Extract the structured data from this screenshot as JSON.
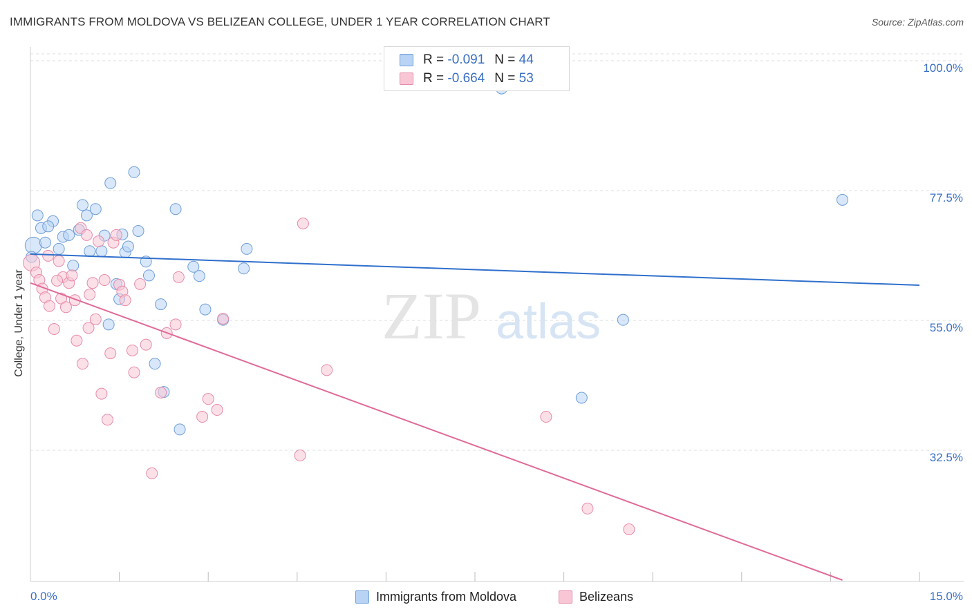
{
  "title": "IMMIGRANTS FROM MOLDOVA VS BELIZEAN COLLEGE, UNDER 1 YEAR CORRELATION CHART",
  "source": "Source: ZipAtlas.com",
  "watermark": {
    "zip": "ZIP",
    "atlas": "atlas"
  },
  "legend": {
    "r_label": "R =",
    "n_label": "N =",
    "series": [
      {
        "name": "Immigrants from Moldova",
        "r": "-0.091",
        "n": "44",
        "fill": "#b8d3f4",
        "stroke": "#6f9ed8"
      },
      {
        "name": "Belizeans",
        "r": "-0.664",
        "n": "53",
        "fill": "#f9c6d6",
        "stroke": "#e78aa8"
      }
    ]
  },
  "colors": {
    "blue_line": "#2f6fcc",
    "pink_line": "#e06a98",
    "axis_text": "#3a6fc4",
    "grid": "#dcdcdc"
  },
  "chart_data": {
    "type": "scatter",
    "title": "IMMIGRANTS FROM MOLDOVA VS BELIZEAN COLLEGE, UNDER 1 YEAR CORRELATION CHART",
    "xlabel": "",
    "ylabel": "College, Under 1 year",
    "xlim": [
      0,
      15
    ],
    "ylim": [
      10,
      102
    ],
    "x_tick_labels": [
      "0.0%",
      "15.0%"
    ],
    "y_ticks": [
      100,
      77.5,
      55,
      32.5
    ],
    "y_tick_labels": [
      "100.0%",
      "77.5%",
      "55.0%",
      "32.5%"
    ],
    "series": [
      {
        "name": "Immigrants from Moldova",
        "color": "#6f9ed8",
        "trend": {
          "x": [
            0,
            15
          ],
          "y": [
            66.5,
            61.1
          ]
        },
        "points": [
          {
            "x": 0.05,
            "y": 68.0
          },
          {
            "x": 0.12,
            "y": 73.2
          },
          {
            "x": 0.18,
            "y": 71.0
          },
          {
            "x": 0.25,
            "y": 68.5
          },
          {
            "x": 0.38,
            "y": 72.2
          },
          {
            "x": 0.3,
            "y": 71.3
          },
          {
            "x": 0.48,
            "y": 67.4
          },
          {
            "x": 0.55,
            "y": 69.5
          },
          {
            "x": 0.65,
            "y": 69.8
          },
          {
            "x": 0.72,
            "y": 64.5
          },
          {
            "x": 0.82,
            "y": 70.7
          },
          {
            "x": 0.88,
            "y": 75.0
          },
          {
            "x": 0.95,
            "y": 73.2
          },
          {
            "x": 1.0,
            "y": 67.0
          },
          {
            "x": 1.1,
            "y": 74.3
          },
          {
            "x": 1.2,
            "y": 67.0
          },
          {
            "x": 1.25,
            "y": 69.7
          },
          {
            "x": 1.32,
            "y": 54.3
          },
          {
            "x": 1.35,
            "y": 78.8
          },
          {
            "x": 1.45,
            "y": 61.3
          },
          {
            "x": 1.5,
            "y": 58.7
          },
          {
            "x": 1.55,
            "y": 69.9
          },
          {
            "x": 1.6,
            "y": 66.8
          },
          {
            "x": 1.65,
            "y": 67.8
          },
          {
            "x": 1.75,
            "y": 80.7
          },
          {
            "x": 1.82,
            "y": 70.5
          },
          {
            "x": 1.95,
            "y": 65.2
          },
          {
            "x": 2.0,
            "y": 62.8
          },
          {
            "x": 2.1,
            "y": 47.5
          },
          {
            "x": 2.2,
            "y": 57.8
          },
          {
            "x": 2.25,
            "y": 42.6
          },
          {
            "x": 2.45,
            "y": 74.3
          },
          {
            "x": 2.52,
            "y": 36.1
          },
          {
            "x": 2.75,
            "y": 64.3
          },
          {
            "x": 2.85,
            "y": 62.7
          },
          {
            "x": 2.95,
            "y": 56.9
          },
          {
            "x": 3.25,
            "y": 55.1
          },
          {
            "x": 3.6,
            "y": 64.0
          },
          {
            "x": 3.65,
            "y": 67.4
          },
          {
            "x": 7.95,
            "y": 95.2
          },
          {
            "x": 9.3,
            "y": 41.6
          },
          {
            "x": 10.0,
            "y": 55.1
          },
          {
            "x": 13.7,
            "y": 75.9
          },
          {
            "x": 0.02,
            "y": 66.0
          }
        ]
      },
      {
        "name": "Belizeans",
        "color": "#e78aa8",
        "trend": {
          "x": [
            0,
            13.7
          ],
          "y": [
            61.5,
            10.0
          ]
        },
        "points": [
          {
            "x": 0.02,
            "y": 65.0
          },
          {
            "x": 0.1,
            "y": 63.3
          },
          {
            "x": 0.15,
            "y": 62.0
          },
          {
            "x": 0.2,
            "y": 60.5
          },
          {
            "x": 0.25,
            "y": 59.0
          },
          {
            "x": 0.32,
            "y": 57.5
          },
          {
            "x": 0.4,
            "y": 53.5
          },
          {
            "x": 0.48,
            "y": 65.3
          },
          {
            "x": 0.52,
            "y": 58.8
          },
          {
            "x": 0.55,
            "y": 62.5
          },
          {
            "x": 0.6,
            "y": 57.3
          },
          {
            "x": 0.65,
            "y": 61.5
          },
          {
            "x": 0.7,
            "y": 62.8
          },
          {
            "x": 0.75,
            "y": 58.5
          },
          {
            "x": 0.78,
            "y": 51.5
          },
          {
            "x": 0.85,
            "y": 71.0
          },
          {
            "x": 0.88,
            "y": 47.5
          },
          {
            "x": 0.95,
            "y": 69.8
          },
          {
            "x": 0.98,
            "y": 53.7
          },
          {
            "x": 1.0,
            "y": 59.5
          },
          {
            "x": 1.05,
            "y": 61.5
          },
          {
            "x": 1.1,
            "y": 55.2
          },
          {
            "x": 1.15,
            "y": 68.7
          },
          {
            "x": 1.2,
            "y": 42.3
          },
          {
            "x": 1.25,
            "y": 62.0
          },
          {
            "x": 1.3,
            "y": 37.8
          },
          {
            "x": 1.35,
            "y": 49.3
          },
          {
            "x": 1.4,
            "y": 68.5
          },
          {
            "x": 1.45,
            "y": 69.8
          },
          {
            "x": 1.5,
            "y": 61.2
          },
          {
            "x": 1.55,
            "y": 60.0
          },
          {
            "x": 1.6,
            "y": 58.5
          },
          {
            "x": 1.72,
            "y": 49.8
          },
          {
            "x": 1.75,
            "y": 46.0
          },
          {
            "x": 1.85,
            "y": 61.3
          },
          {
            "x": 1.95,
            "y": 50.8
          },
          {
            "x": 2.05,
            "y": 28.5
          },
          {
            "x": 2.2,
            "y": 42.5
          },
          {
            "x": 2.3,
            "y": 52.8
          },
          {
            "x": 2.45,
            "y": 54.3
          },
          {
            "x": 2.5,
            "y": 62.5
          },
          {
            "x": 2.9,
            "y": 38.3
          },
          {
            "x": 3.0,
            "y": 41.4
          },
          {
            "x": 3.15,
            "y": 39.5
          },
          {
            "x": 3.25,
            "y": 55.3
          },
          {
            "x": 4.55,
            "y": 31.6
          },
          {
            "x": 4.6,
            "y": 71.8
          },
          {
            "x": 5.0,
            "y": 46.4
          },
          {
            "x": 8.7,
            "y": 38.3
          },
          {
            "x": 9.4,
            "y": 22.4
          },
          {
            "x": 10.1,
            "y": 18.8
          },
          {
            "x": 0.3,
            "y": 66.2
          },
          {
            "x": 0.45,
            "y": 61.9
          }
        ]
      }
    ]
  }
}
